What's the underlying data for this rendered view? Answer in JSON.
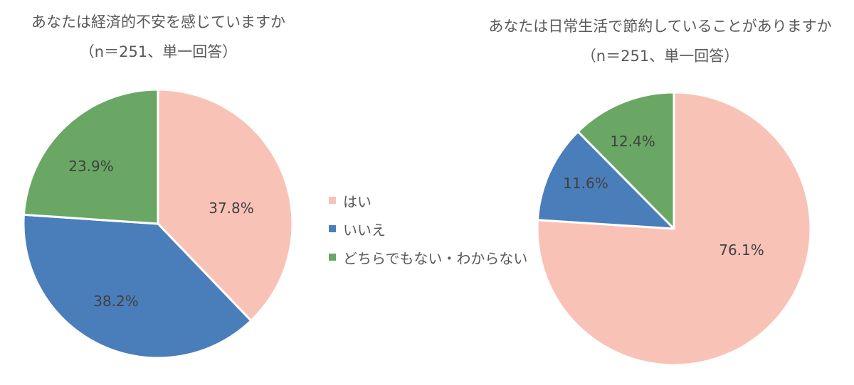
{
  "chart_data": [
    {
      "type": "pie",
      "title": "あなたは経済的不安を感じていますか",
      "subtitle": "（n＝251、単一回答）",
      "categories": [
        "はい",
        "いいえ",
        "どちらでもない・わからない"
      ],
      "values": [
        37.8,
        38.2,
        23.9
      ],
      "labels": [
        "37.8%",
        "38.2%",
        "23.9%"
      ],
      "colors": [
        "#F8C3B6",
        "#4A7EBB",
        "#6AA765"
      ],
      "start_angle_deg": 0,
      "direction": "clockwise",
      "legend_position": "center-between"
    },
    {
      "type": "pie",
      "title": "あなたは日常生活で節約していることがありますか",
      "subtitle": "（n＝251、単一回答）",
      "categories": [
        "はい",
        "いいえ",
        "どちらでもない・わからない"
      ],
      "values": [
        76.1,
        11.6,
        12.4
      ],
      "labels": [
        "76.1%",
        "11.6%",
        "12.4%"
      ],
      "colors": [
        "#F8C3B6",
        "#4A7EBB",
        "#6AA765"
      ],
      "start_angle_deg": 0,
      "direction": "clockwise",
      "legend_position": "center-between"
    }
  ],
  "charts": [
    {
      "title": "あなたは経済的不安を感じていますか",
      "subtitle": "（n＝251、単一回答）",
      "labels": [
        "37.8%",
        "38.2%",
        "23.9%"
      ]
    },
    {
      "title": "あなたは日常生活で節約していることがありますか",
      "subtitle": "（n＝251、単一回答）",
      "labels": [
        "76.1%",
        "11.6%",
        "12.4%"
      ]
    }
  ],
  "legend": {
    "items": [
      {
        "label": "はい",
        "color": "#F8C3B6"
      },
      {
        "label": "いいえ",
        "color": "#4A7EBB"
      },
      {
        "label": "どちらでもない・わからない",
        "color": "#6AA765"
      }
    ]
  }
}
